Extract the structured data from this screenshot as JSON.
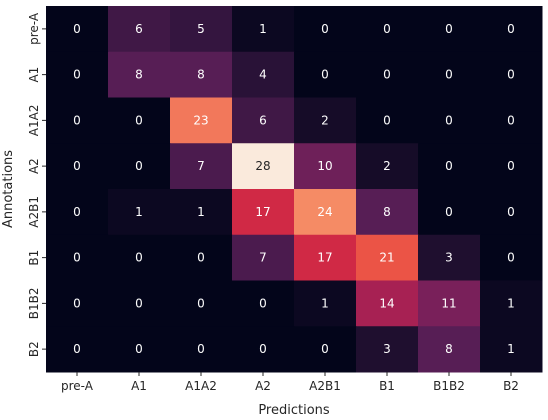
{
  "chart_data": {
    "type": "heatmap",
    "xlabel": "Predictions",
    "ylabel": "Annotations",
    "x_categories": [
      "pre-A",
      "A1",
      "A1A2",
      "A2",
      "A2B1",
      "B1",
      "B1B2",
      "B2"
    ],
    "y_categories": [
      "pre-A",
      "A1",
      "A1A2",
      "A2",
      "A2B1",
      "B1",
      "B1B2",
      "B2"
    ],
    "values": [
      [
        0,
        6,
        5,
        1,
        0,
        0,
        0,
        0
      ],
      [
        0,
        8,
        8,
        4,
        0,
        0,
        0,
        0
      ],
      [
        0,
        0,
        23,
        6,
        2,
        0,
        0,
        0
      ],
      [
        0,
        0,
        7,
        28,
        10,
        2,
        0,
        0
      ],
      [
        0,
        1,
        1,
        17,
        24,
        8,
        0,
        0
      ],
      [
        0,
        0,
        0,
        7,
        17,
        21,
        3,
        0
      ],
      [
        0,
        0,
        0,
        0,
        1,
        14,
        11,
        1
      ],
      [
        0,
        0,
        0,
        0,
        0,
        3,
        8,
        1
      ]
    ],
    "vmin": 0,
    "vmax": 28,
    "colormap": "rocket",
    "colorbar": false
  }
}
